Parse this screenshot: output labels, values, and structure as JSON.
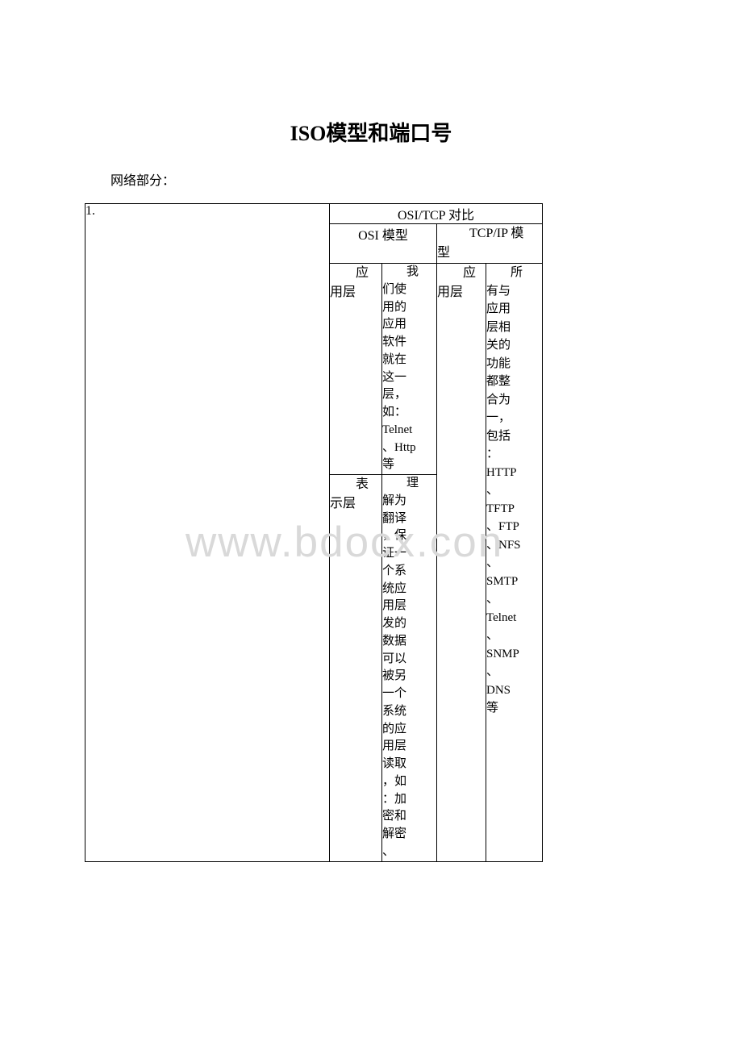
{
  "title": "ISO模型和端口号",
  "subtitle": "网络部分：",
  "watermark": "www.bdocx.con",
  "table": {
    "row_number": "1.",
    "header_main": "OSI/TCP 对比",
    "header_osi": "OSI 模型",
    "header_tcp": "TCP/IP 模型",
    "osi_layer1_name": "应用层",
    "osi_layer1_desc": "我们使用的应用软件就在这一层，如：Telnet、Http等",
    "osi_layer2_name": "表示层",
    "osi_layer2_desc": "理解为翻译，保证一个系统应用层发的数据可以被另一个系统的应用层读取，如：加密和解密、",
    "tcp_layer_name": "应用层",
    "tcp_layer_desc": "所有与应用层相关的功能都整合为一，包括：HTTP、TFTP、FTP、NFS、SMTP、Telnet、SNMP、DNS等"
  },
  "colors": {
    "background": "#ffffff",
    "text": "#000000",
    "border": "#000000",
    "watermark": "#d9d9d9"
  }
}
